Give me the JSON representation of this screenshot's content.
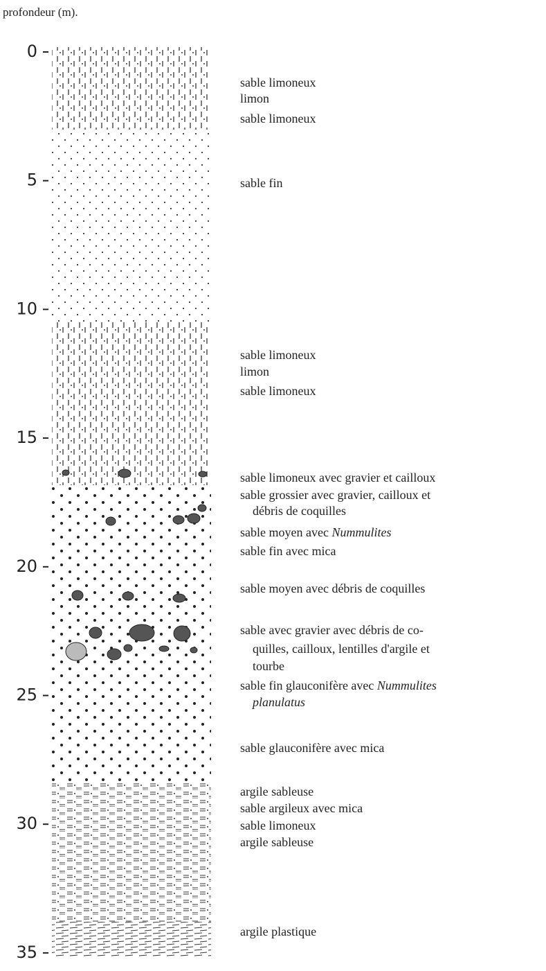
{
  "axis_label": "profondeur (m).",
  "depth_ticks": [
    0,
    5,
    10,
    15,
    20,
    25,
    30,
    35
  ],
  "descriptions": [
    {
      "text": "sable limoneux"
    },
    {
      "text": "limon"
    },
    {
      "text": "sable limoneux"
    },
    {
      "text": "sable fin"
    },
    {
      "text": "sable limoneux"
    },
    {
      "text": "limon"
    },
    {
      "text": "sable limoneux"
    },
    {
      "text": "sable limoneux avec gravier et cailloux"
    },
    {
      "text": "sable grossier avec gravier, cailloux et"
    },
    {
      "text": "débris de coquilles"
    },
    {
      "text": "sable moyen avec ",
      "italic": "Nummulites"
    },
    {
      "text": "sable fin avec mica"
    },
    {
      "text": "sable moyen avec débris de coquilles"
    },
    {
      "text": "sable avec gravier avec débris de co-"
    },
    {
      "text": "quilles, cailloux, lentilles d'argile et"
    },
    {
      "text": "tourbe"
    },
    {
      "text": "sable fin glauconifère avec ",
      "italic": "Nummulites"
    },
    {
      "italic": "planulatus"
    },
    {
      "text": "sable glauconifère avec mica"
    },
    {
      "text": "argile sableuse"
    },
    {
      "text": "sable argileux avec mica"
    },
    {
      "text": "sable limoneux"
    },
    {
      "text": "argile sableuse"
    },
    {
      "text": "argile plastique"
    }
  ]
}
